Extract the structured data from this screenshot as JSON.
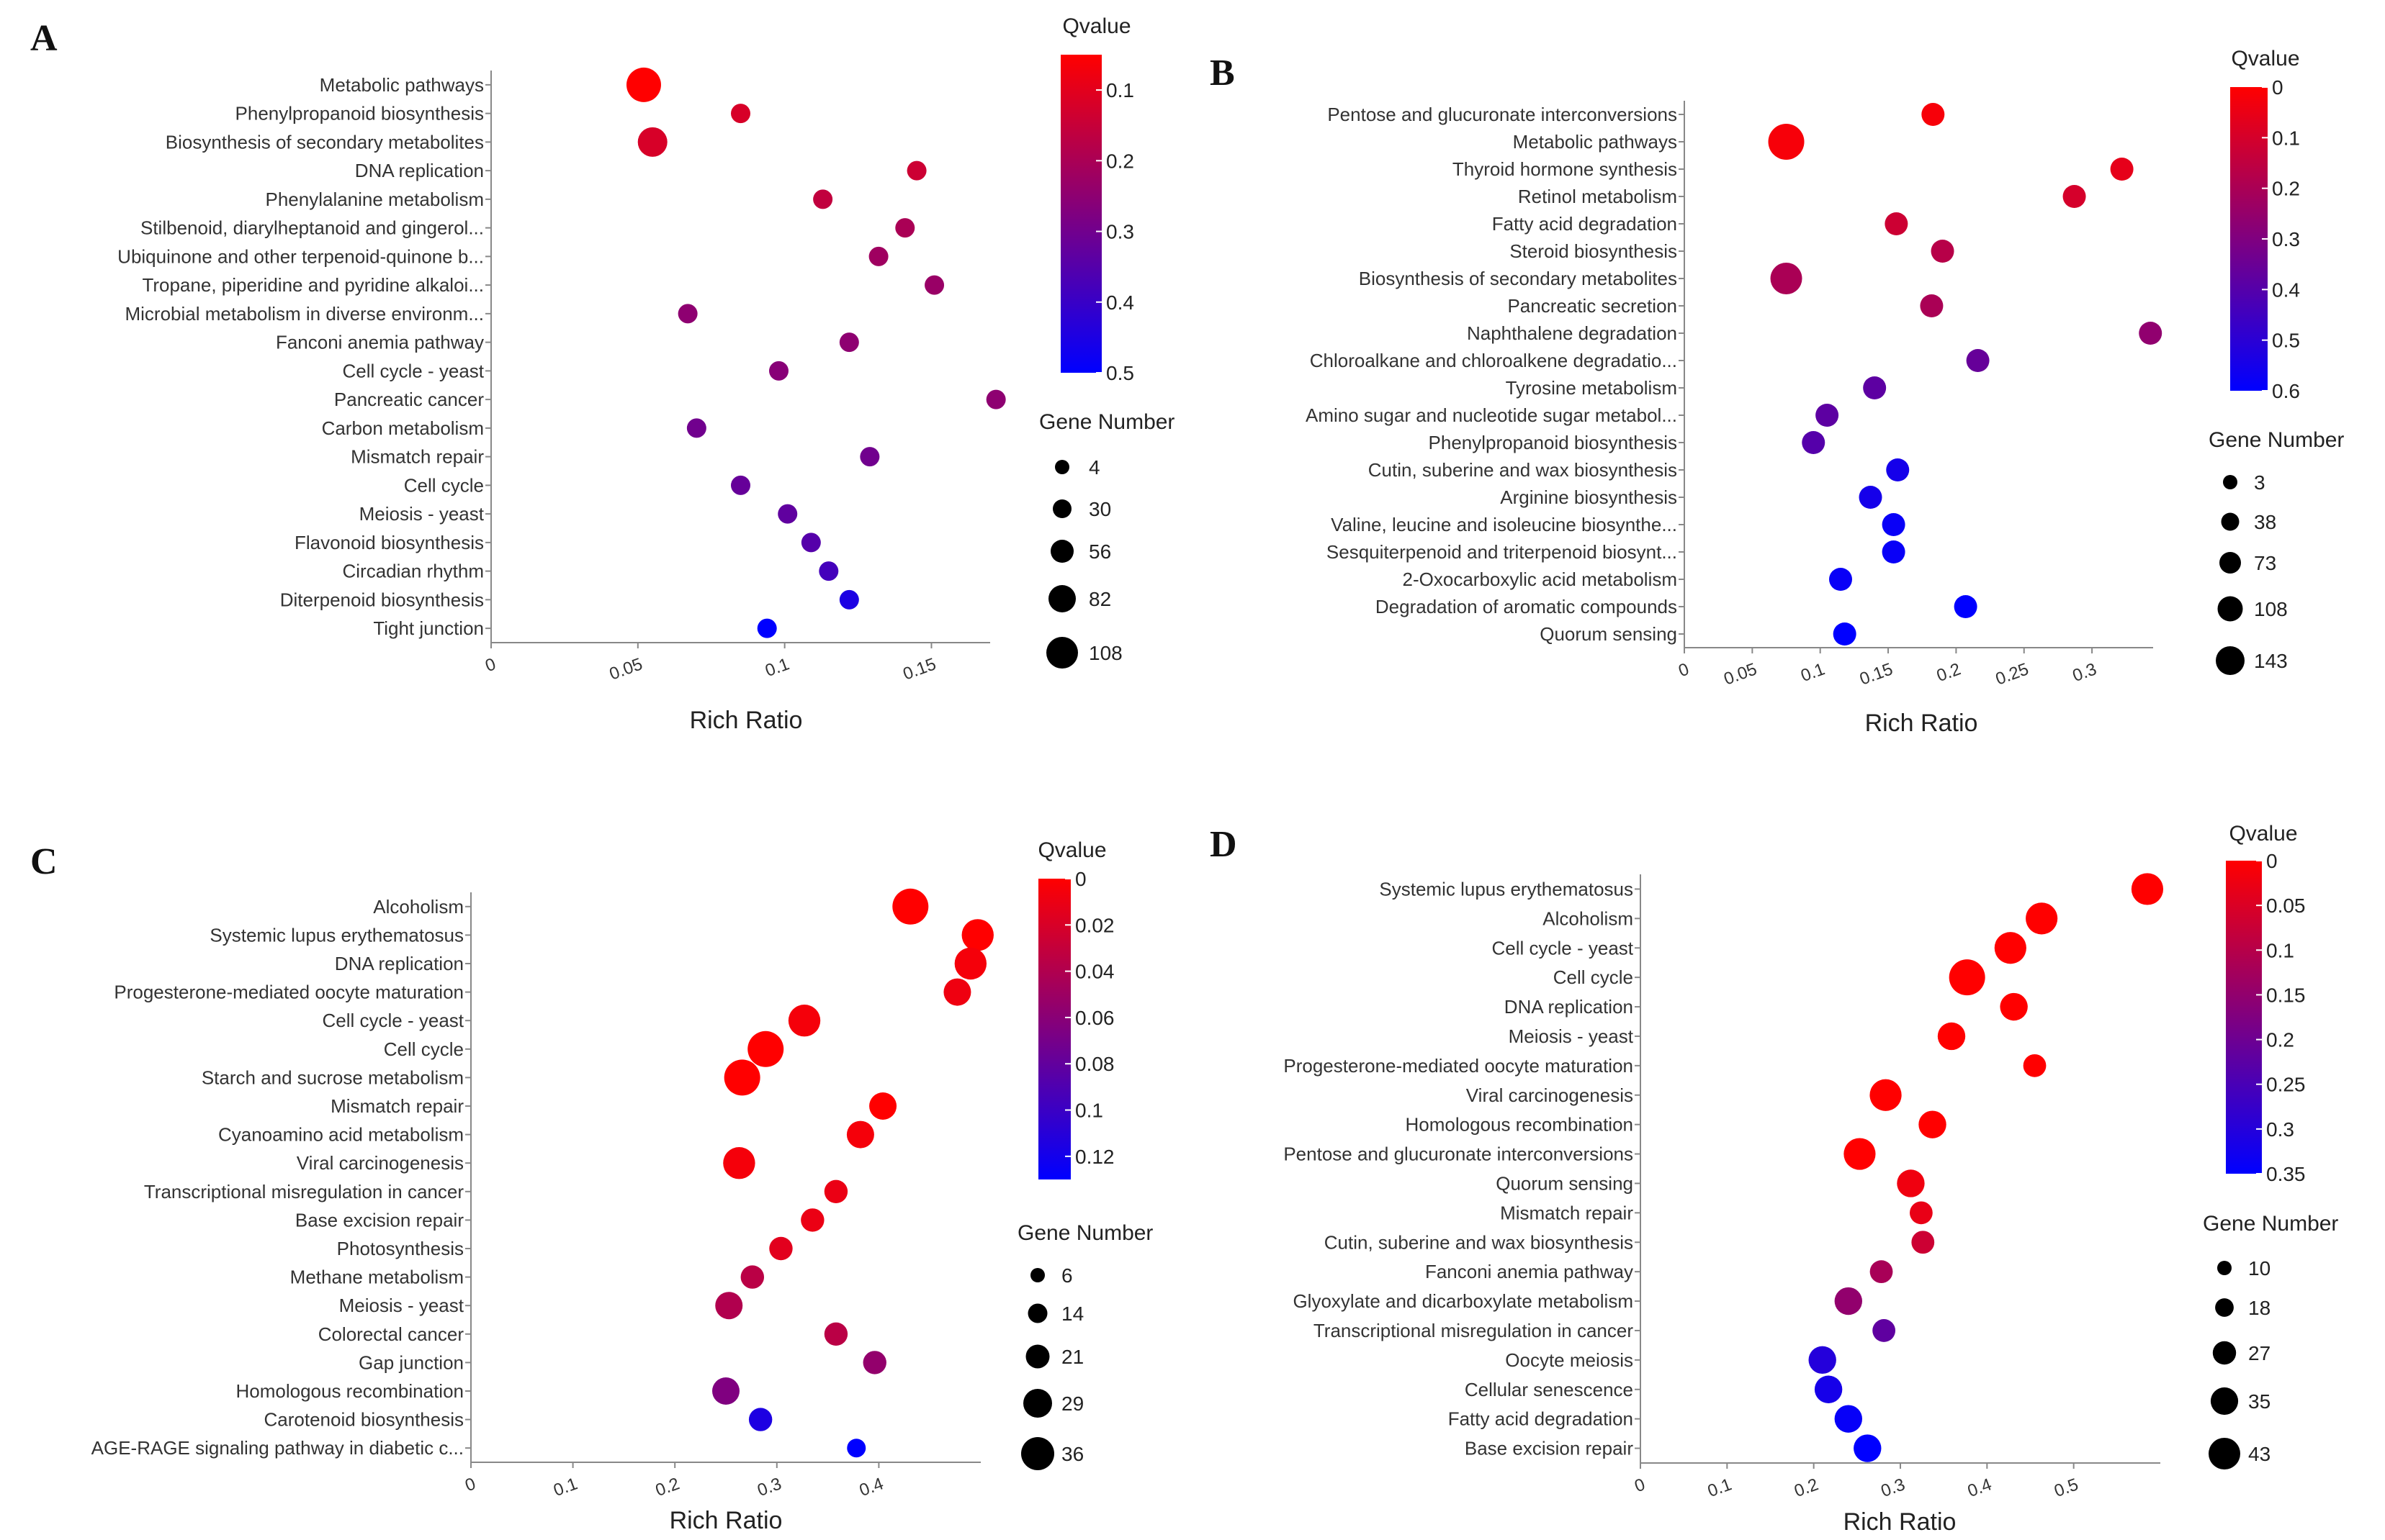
{
  "chart_data": [
    {
      "panel": "A",
      "type": "scatter",
      "xlabel": "Rich Ratio",
      "xlim": [
        0,
        0.17
      ],
      "xticks": [
        "0",
        "0.05",
        "0.1",
        "0.15"
      ],
      "xtick_values": [
        0,
        0.05,
        0.1,
        0.15
      ],
      "color_legend": {
        "title": "Qvalue",
        "range": [
          0.05,
          0.5
        ],
        "ticks": [
          "0.1",
          "0.2",
          "0.3",
          "0.4",
          "0.5"
        ],
        "tick_values": [
          0.1,
          0.2,
          0.3,
          0.4,
          0.5
        ],
        "low_color": "#ff0000",
        "high_color": "#0000ff"
      },
      "size_legend": {
        "title": "Gene Number",
        "values": [
          4,
          30,
          56,
          82,
          108
        ],
        "labels": [
          "4",
          "30",
          "56",
          "82",
          "108"
        ]
      },
      "points": [
        {
          "term": "Metabolic pathways",
          "rich_ratio": 0.052,
          "qvalue": 0.05,
          "gene_number": 108
        },
        {
          "term": "Phenylpropanoid biosynthesis",
          "rich_ratio": 0.085,
          "qvalue": 0.12,
          "gene_number": 30
        },
        {
          "term": "Biosynthesis of secondary metabolites",
          "rich_ratio": 0.055,
          "qvalue": 0.12,
          "gene_number": 82
        },
        {
          "term": "DNA replication",
          "rich_ratio": 0.145,
          "qvalue": 0.14,
          "gene_number": 30
        },
        {
          "term": "Phenylalanine metabolism",
          "rich_ratio": 0.113,
          "qvalue": 0.16,
          "gene_number": 30
        },
        {
          "term": "Stilbenoid, diarylheptanoid and gingerol...",
          "rich_ratio": 0.141,
          "qvalue": 0.2,
          "gene_number": 30
        },
        {
          "term": "Ubiquinone and other terpenoid-quinone b...",
          "rich_ratio": 0.132,
          "qvalue": 0.22,
          "gene_number": 30
        },
        {
          "term": "Tropane, piperidine and pyridine alkaloi...",
          "rich_ratio": 0.151,
          "qvalue": 0.23,
          "gene_number": 30
        },
        {
          "term": "Microbial metabolism in diverse environm...",
          "rich_ratio": 0.067,
          "qvalue": 0.25,
          "gene_number": 30
        },
        {
          "term": "Fanconi anemia pathway",
          "rich_ratio": 0.122,
          "qvalue": 0.25,
          "gene_number": 30
        },
        {
          "term": "Cell cycle - yeast",
          "rich_ratio": 0.098,
          "qvalue": 0.26,
          "gene_number": 30
        },
        {
          "term": "Pancreatic cancer",
          "rich_ratio": 0.172,
          "qvalue": 0.25,
          "gene_number": 30
        },
        {
          "term": "Carbon metabolism",
          "rich_ratio": 0.07,
          "qvalue": 0.3,
          "gene_number": 30
        },
        {
          "term": "Mismatch repair",
          "rich_ratio": 0.129,
          "qvalue": 0.3,
          "gene_number": 30
        },
        {
          "term": "Cell cycle",
          "rich_ratio": 0.085,
          "qvalue": 0.32,
          "gene_number": 30
        },
        {
          "term": "Meiosis - yeast",
          "rich_ratio": 0.101,
          "qvalue": 0.33,
          "gene_number": 30
        },
        {
          "term": "Flavonoid biosynthesis",
          "rich_ratio": 0.109,
          "qvalue": 0.35,
          "gene_number": 30
        },
        {
          "term": "Circadian rhythm",
          "rich_ratio": 0.115,
          "qvalue": 0.38,
          "gene_number": 30
        },
        {
          "term": "Diterpenoid biosynthesis",
          "rich_ratio": 0.122,
          "qvalue": 0.45,
          "gene_number": 30
        },
        {
          "term": "Tight junction",
          "rich_ratio": 0.094,
          "qvalue": 0.5,
          "gene_number": 30
        }
      ]
    },
    {
      "panel": "B",
      "type": "scatter",
      "xlabel": "Rich Ratio",
      "xlim": [
        0,
        0.345
      ],
      "xticks": [
        "0",
        "0.05",
        "0.1",
        "0.15",
        "0.2",
        "0.25",
        "0.3"
      ],
      "xtick_values": [
        0,
        0.05,
        0.1,
        0.15,
        0.2,
        0.25,
        0.3
      ],
      "color_legend": {
        "title": "Qvalue",
        "range": [
          0,
          0.6
        ],
        "ticks": [
          "0",
          "0.1",
          "0.2",
          "0.3",
          "0.4",
          "0.5",
          "0.6"
        ],
        "tick_values": [
          0,
          0.1,
          0.2,
          0.3,
          0.4,
          0.5,
          0.6
        ],
        "low_color": "#ff0000",
        "high_color": "#0000ff"
      },
      "size_legend": {
        "title": "Gene Number",
        "values": [
          3,
          38,
          73,
          108,
          143
        ],
        "labels": [
          "3",
          "38",
          "73",
          "108",
          "143"
        ]
      },
      "points": [
        {
          "term": "Pentose and glucuronate interconversions",
          "rich_ratio": 0.183,
          "qvalue": 0.02,
          "gene_number": 38
        },
        {
          "term": "Metabolic pathways",
          "rich_ratio": 0.075,
          "qvalue": 0.02,
          "gene_number": 143
        },
        {
          "term": "Thyroid hormone synthesis",
          "rich_ratio": 0.322,
          "qvalue": 0.06,
          "gene_number": 38
        },
        {
          "term": "Retinol metabolism",
          "rich_ratio": 0.287,
          "qvalue": 0.1,
          "gene_number": 38
        },
        {
          "term": "Fatty acid degradation",
          "rich_ratio": 0.156,
          "qvalue": 0.12,
          "gene_number": 38
        },
        {
          "term": "Steroid biosynthesis",
          "rich_ratio": 0.19,
          "qvalue": 0.17,
          "gene_number": 38
        },
        {
          "term": "Biosynthesis of secondary metabolites",
          "rich_ratio": 0.075,
          "qvalue": 0.2,
          "gene_number": 108
        },
        {
          "term": "Pancreatic secretion",
          "rich_ratio": 0.182,
          "qvalue": 0.2,
          "gene_number": 38
        },
        {
          "term": "Naphthalene degradation",
          "rich_ratio": 0.343,
          "qvalue": 0.26,
          "gene_number": 38
        },
        {
          "term": "Chloroalkane and chloroalkene degradatio...",
          "rich_ratio": 0.216,
          "qvalue": 0.36,
          "gene_number": 38
        },
        {
          "term": "Tyrosine metabolism",
          "rich_ratio": 0.14,
          "qvalue": 0.38,
          "gene_number": 38
        },
        {
          "term": "Amino sugar and nucleotide sugar metabol...",
          "rich_ratio": 0.105,
          "qvalue": 0.38,
          "gene_number": 38
        },
        {
          "term": "Phenylpropanoid biosynthesis",
          "rich_ratio": 0.095,
          "qvalue": 0.4,
          "gene_number": 38
        },
        {
          "term": "Cutin, suberine and wax biosynthesis",
          "rich_ratio": 0.157,
          "qvalue": 0.55,
          "gene_number": 38
        },
        {
          "term": "Arginine biosynthesis",
          "rich_ratio": 0.137,
          "qvalue": 0.55,
          "gene_number": 38
        },
        {
          "term": "Valine, leucine and isoleucine biosynthe...",
          "rich_ratio": 0.154,
          "qvalue": 0.58,
          "gene_number": 38
        },
        {
          "term": "Sesquiterpenoid and triterpenoid biosynt...",
          "rich_ratio": 0.154,
          "qvalue": 0.58,
          "gene_number": 38
        },
        {
          "term": "2-Oxocarboxylic acid metabolism",
          "rich_ratio": 0.115,
          "qvalue": 0.58,
          "gene_number": 38
        },
        {
          "term": "Degradation of aromatic compounds",
          "rich_ratio": 0.207,
          "qvalue": 0.6,
          "gene_number": 38
        },
        {
          "term": "Quorum sensing",
          "rich_ratio": 0.118,
          "qvalue": 0.6,
          "gene_number": 38
        }
      ]
    },
    {
      "panel": "C",
      "type": "scatter",
      "xlabel": "Rich Ratio",
      "xlim": [
        0,
        0.5
      ],
      "xticks": [
        "0",
        "0.1",
        "0.2",
        "0.3",
        "0.4"
      ],
      "xtick_values": [
        0,
        0.1,
        0.2,
        0.3,
        0.4
      ],
      "color_legend": {
        "title": "Qvalue",
        "range": [
          0,
          0.13
        ],
        "ticks": [
          "0",
          "0.02",
          "0.04",
          "0.06",
          "0.08",
          "0.1",
          "0.12"
        ],
        "tick_values": [
          0,
          0.02,
          0.04,
          0.06,
          0.08,
          0.1,
          0.12
        ],
        "low_color": "#ff0000",
        "high_color": "#0000ff"
      },
      "size_legend": {
        "title": "Gene Number",
        "values": [
          6,
          14,
          21,
          29,
          36
        ],
        "labels": [
          "6",
          "14",
          "21",
          "29",
          "36"
        ]
      },
      "points": [
        {
          "term": "Alcoholism",
          "rich_ratio": 0.431,
          "qvalue": 0.0,
          "gene_number": 36
        },
        {
          "term": "Systemic lupus erythematosus",
          "rich_ratio": 0.497,
          "qvalue": 0.0,
          "gene_number": 29
        },
        {
          "term": "DNA replication",
          "rich_ratio": 0.49,
          "qvalue": 0.005,
          "gene_number": 29
        },
        {
          "term": "Progesterone-mediated oocyte maturation",
          "rich_ratio": 0.477,
          "qvalue": 0.008,
          "gene_number": 21
        },
        {
          "term": "Cell cycle - yeast",
          "rich_ratio": 0.327,
          "qvalue": 0.005,
          "gene_number": 29
        },
        {
          "term": "Cell cycle",
          "rich_ratio": 0.289,
          "qvalue": 0.0,
          "gene_number": 36
        },
        {
          "term": "Starch and sucrose metabolism",
          "rich_ratio": 0.266,
          "qvalue": 0.0,
          "gene_number": 36
        },
        {
          "term": "Mismatch repair",
          "rich_ratio": 0.404,
          "qvalue": 0.0,
          "gene_number": 21
        },
        {
          "term": "Cyanoamino acid metabolism",
          "rich_ratio": 0.382,
          "qvalue": 0.005,
          "gene_number": 21
        },
        {
          "term": "Viral carcinogenesis",
          "rich_ratio": 0.263,
          "qvalue": 0.005,
          "gene_number": 29
        },
        {
          "term": "Transcriptional misregulation in cancer",
          "rich_ratio": 0.358,
          "qvalue": 0.01,
          "gene_number": 14
        },
        {
          "term": "Base excision repair",
          "rich_ratio": 0.335,
          "qvalue": 0.01,
          "gene_number": 14
        },
        {
          "term": "Photosynthesis",
          "rich_ratio": 0.304,
          "qvalue": 0.015,
          "gene_number": 14
        },
        {
          "term": "Methane metabolism",
          "rich_ratio": 0.276,
          "qvalue": 0.035,
          "gene_number": 14
        },
        {
          "term": "Meiosis - yeast",
          "rich_ratio": 0.253,
          "qvalue": 0.04,
          "gene_number": 21
        },
        {
          "term": "Colorectal cancer",
          "rich_ratio": 0.358,
          "qvalue": 0.035,
          "gene_number": 14
        },
        {
          "term": "Gap junction",
          "rich_ratio": 0.396,
          "qvalue": 0.055,
          "gene_number": 14
        },
        {
          "term": "Homologous recombination",
          "rich_ratio": 0.25,
          "qvalue": 0.065,
          "gene_number": 21
        },
        {
          "term": "Carotenoid biosynthesis",
          "rich_ratio": 0.284,
          "qvalue": 0.115,
          "gene_number": 14
        },
        {
          "term": "AGE-RAGE signaling pathway in diabetic c...",
          "rich_ratio": 0.378,
          "qvalue": 0.13,
          "gene_number": 6
        }
      ]
    },
    {
      "panel": "D",
      "type": "scatter",
      "xlabel": "Rich Ratio",
      "xlim": [
        0,
        0.6
      ],
      "xticks": [
        "0",
        "0.1",
        "0.2",
        "0.3",
        "0.4",
        "0.5"
      ],
      "xtick_values": [
        0,
        0.1,
        0.2,
        0.3,
        0.4,
        0.5
      ],
      "color_legend": {
        "title": "Qvalue",
        "range": [
          0,
          0.35
        ],
        "ticks": [
          "0",
          "0.05",
          "0.1",
          "0.15",
          "0.2",
          "0.25",
          "0.3",
          "0.35"
        ],
        "tick_values": [
          0,
          0.05,
          0.1,
          0.15,
          0.2,
          0.25,
          0.3,
          0.35
        ],
        "low_color": "#ff0000",
        "high_color": "#0000ff"
      },
      "size_legend": {
        "title": "Gene Number",
        "values": [
          10,
          18,
          27,
          35,
          43
        ],
        "labels": [
          "10",
          "18",
          "27",
          "35",
          "43"
        ]
      },
      "points": [
        {
          "term": "Systemic lupus erythematosus",
          "rich_ratio": 0.585,
          "qvalue": 0.0,
          "gene_number": 35
        },
        {
          "term": "Alcoholism",
          "rich_ratio": 0.463,
          "qvalue": 0.0,
          "gene_number": 35
        },
        {
          "term": "Cell cycle - yeast",
          "rich_ratio": 0.427,
          "qvalue": 0.0,
          "gene_number": 35
        },
        {
          "term": "Cell cycle",
          "rich_ratio": 0.377,
          "qvalue": 0.0,
          "gene_number": 43
        },
        {
          "term": "DNA replication",
          "rich_ratio": 0.431,
          "qvalue": 0.0,
          "gene_number": 27
        },
        {
          "term": "Meiosis - yeast",
          "rich_ratio": 0.359,
          "qvalue": 0.0,
          "gene_number": 27
        },
        {
          "term": "Progesterone-mediated oocyte maturation",
          "rich_ratio": 0.455,
          "qvalue": 0.0,
          "gene_number": 18
        },
        {
          "term": "Viral carcinogenesis",
          "rich_ratio": 0.283,
          "qvalue": 0.0,
          "gene_number": 35
        },
        {
          "term": "Homologous recombination",
          "rich_ratio": 0.337,
          "qvalue": 0.0,
          "gene_number": 27
        },
        {
          "term": "Pentose and glucuronate interconversions",
          "rich_ratio": 0.253,
          "qvalue": 0.0,
          "gene_number": 35
        },
        {
          "term": "Quorum sensing",
          "rich_ratio": 0.312,
          "qvalue": 0.02,
          "gene_number": 27
        },
        {
          "term": "Mismatch repair",
          "rich_ratio": 0.324,
          "qvalue": 0.03,
          "gene_number": 18
        },
        {
          "term": "Cutin, suberine and wax biosynthesis",
          "rich_ratio": 0.326,
          "qvalue": 0.07,
          "gene_number": 18
        },
        {
          "term": "Fanconi anemia pathway",
          "rich_ratio": 0.278,
          "qvalue": 0.12,
          "gene_number": 18
        },
        {
          "term": "Glyoxylate and dicarboxylate metabolism",
          "rich_ratio": 0.24,
          "qvalue": 0.15,
          "gene_number": 27
        },
        {
          "term": "Transcriptional misregulation in cancer",
          "rich_ratio": 0.281,
          "qvalue": 0.22,
          "gene_number": 18
        },
        {
          "term": "Oocyte meiosis",
          "rich_ratio": 0.21,
          "qvalue": 0.3,
          "gene_number": 27
        },
        {
          "term": "Cellular senescence",
          "rich_ratio": 0.217,
          "qvalue": 0.32,
          "gene_number": 27
        },
        {
          "term": "Fatty acid degradation",
          "rich_ratio": 0.24,
          "qvalue": 0.34,
          "gene_number": 27
        },
        {
          "term": "Base excision repair",
          "rich_ratio": 0.262,
          "qvalue": 0.35,
          "gene_number": 27
        }
      ]
    }
  ]
}
